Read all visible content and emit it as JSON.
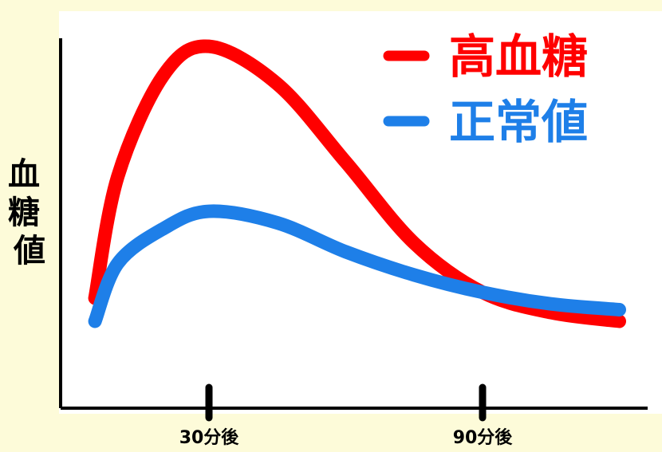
{
  "chart_data": {
    "type": "line",
    "title": "",
    "xlabel": "",
    "ylabel": "血糖値",
    "x_ticks": [
      "30分後",
      "90分後"
    ],
    "legend": {
      "placement": "top-right"
    },
    "grid": false,
    "series": [
      {
        "name": "高血糖",
        "color": "#ff0000",
        "x": [
          5,
          10,
          20,
          30,
          45,
          60,
          75,
          90,
          105,
          120
        ],
        "y": [
          0.08,
          0.5,
          0.85,
          0.95,
          0.82,
          0.55,
          0.27,
          0.1,
          0.03,
          0.0
        ]
      },
      {
        "name": "正常値",
        "color": "#1e7fe8",
        "x": [
          5,
          10,
          20,
          30,
          45,
          60,
          75,
          90,
          105,
          120
        ],
        "y": [
          0.0,
          0.2,
          0.32,
          0.38,
          0.34,
          0.24,
          0.16,
          0.1,
          0.06,
          0.04
        ]
      }
    ]
  }
}
